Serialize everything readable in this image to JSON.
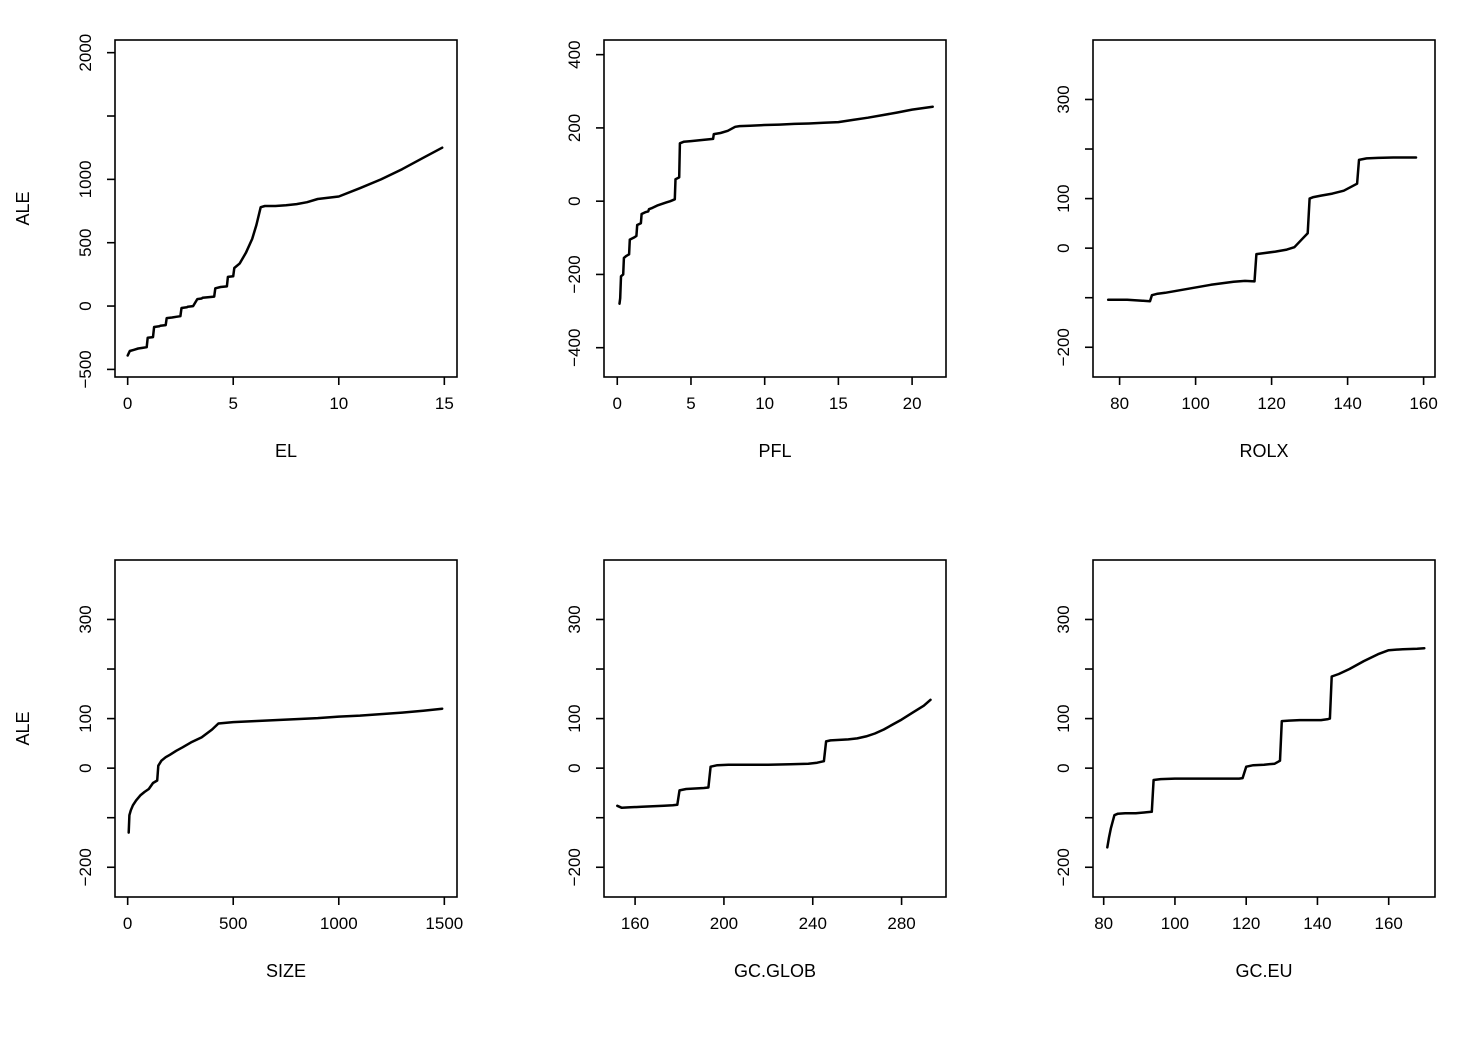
{
  "figure": {
    "background_color": "#ffffff",
    "line_color": "#000000",
    "text_color": "#000000",
    "axis_color": "#000000"
  },
  "chart_data": [
    {
      "type": "line",
      "title": "",
      "xlabel": "EL",
      "ylabel": "ALE",
      "xlim": [
        -0.6,
        15.6
      ],
      "ylim": [
        -560,
        2100
      ],
      "grid": false,
      "legend": "none",
      "xticks": [
        0,
        5,
        10,
        15
      ],
      "xtick_labels": [
        "0",
        "5",
        "10",
        "15"
      ],
      "yticks": [
        -500,
        0,
        500,
        1000,
        1500,
        2000
      ],
      "ytick_labels": [
        "−500",
        "0",
        "500",
        "1000",
        "",
        "2000"
      ],
      "x": [
        0,
        0.1,
        0.3,
        0.5,
        0.7,
        0.9,
        0.95,
        1.2,
        1.25,
        1.5,
        1.55,
        1.8,
        1.85,
        2.1,
        2.3,
        2.5,
        2.55,
        2.8,
        2.85,
        3.1,
        3.3,
        3.5,
        3.55,
        3.8,
        4.1,
        4.15,
        4.4,
        4.7,
        4.75,
        5.0,
        5.05,
        5.3,
        5.6,
        5.9,
        6.1,
        6.3,
        6.5,
        7.0,
        7.5,
        8.0,
        8.5,
        9.0,
        9.5,
        10.0,
        11.0,
        12.0,
        13.0,
        14.0,
        14.9
      ],
      "y": [
        -390,
        -355,
        -345,
        -335,
        -330,
        -325,
        -250,
        -245,
        -165,
        -160,
        -155,
        -150,
        -95,
        -90,
        -85,
        -80,
        -15,
        -10,
        -5,
        0,
        55,
        60,
        65,
        70,
        75,
        140,
        150,
        155,
        230,
        235,
        300,
        335,
        420,
        530,
        640,
        780,
        790,
        790,
        795,
        805,
        820,
        845,
        855,
        865,
        930,
        1000,
        1080,
        1170,
        1250
      ]
    },
    {
      "type": "line",
      "title": "",
      "xlabel": "PFL",
      "ylabel": "",
      "xlim": [
        -0.9,
        22.3
      ],
      "ylim": [
        -480,
        440
      ],
      "grid": false,
      "legend": "none",
      "xticks": [
        0,
        5,
        10,
        15,
        20
      ],
      "xtick_labels": [
        "0",
        "5",
        "10",
        "15",
        "20"
      ],
      "yticks": [
        -400,
        -200,
        0,
        200,
        400
      ],
      "ytick_labels": [
        "−400",
        "−200",
        "0",
        "200",
        "400"
      ],
      "x": [
        0.15,
        0.2,
        0.25,
        0.4,
        0.45,
        0.6,
        0.8,
        0.85,
        1.1,
        1.3,
        1.35,
        1.6,
        1.65,
        1.9,
        2.1,
        2.15,
        2.4,
        2.7,
        3.0,
        3.3,
        3.6,
        3.9,
        3.95,
        4.2,
        4.25,
        4.5,
        5.0,
        5.5,
        6.0,
        6.5,
        6.55,
        7.0,
        7.5,
        8.0,
        8.3,
        9.0,
        10.0,
        11.0,
        12.0,
        13.0,
        14.0,
        15.0,
        16.0,
        17.0,
        18.0,
        19.0,
        20.0,
        21.4
      ],
      "y": [
        -280,
        -265,
        -205,
        -200,
        -155,
        -150,
        -145,
        -105,
        -100,
        -95,
        -65,
        -60,
        -35,
        -30,
        -28,
        -22,
        -18,
        -12,
        -8,
        -4,
        0,
        5,
        60,
        65,
        158,
        162,
        164,
        166,
        168,
        170,
        183,
        186,
        192,
        203,
        205,
        206,
        208,
        209,
        211,
        212,
        214,
        216,
        222,
        228,
        235,
        242,
        250,
        258
      ]
    },
    {
      "type": "line",
      "title": "",
      "xlabel": "ROLX",
      "ylabel": "",
      "xlim": [
        73,
        163
      ],
      "ylim": [
        -260,
        420
      ],
      "grid": false,
      "legend": "none",
      "xticks": [
        80,
        100,
        120,
        140,
        160
      ],
      "xtick_labels": [
        "80",
        "100",
        "120",
        "140",
        "160"
      ],
      "yticks": [
        -200,
        -100,
        0,
        100,
        200,
        300
      ],
      "ytick_labels": [
        "−200",
        "",
        "0",
        "100",
        "",
        "300"
      ],
      "x": [
        77,
        82,
        86,
        88,
        88.5,
        90,
        92,
        95,
        98,
        101,
        104,
        107,
        110,
        113,
        115.5,
        116,
        118,
        121,
        124,
        126,
        128,
        129.5,
        130,
        131,
        133,
        136,
        139,
        141,
        142.5,
        143,
        145,
        148,
        152,
        158
      ],
      "y": [
        -104,
        -104,
        -106,
        -107,
        -95,
        -92,
        -90,
        -86,
        -82,
        -78,
        -74,
        -71,
        -68,
        -66,
        -67,
        -12,
        -10,
        -7,
        -3,
        2,
        18,
        30,
        100,
        103,
        106,
        110,
        116,
        124,
        130,
        178,
        181,
        182,
        183,
        183
      ]
    },
    {
      "type": "line",
      "title": "",
      "xlabel": "SIZE",
      "ylabel": "ALE",
      "xlim": [
        -60,
        1560
      ],
      "ylim": [
        -260,
        420
      ],
      "grid": false,
      "legend": "none",
      "xticks": [
        0,
        500,
        1000,
        1500
      ],
      "xtick_labels": [
        "0",
        "500",
        "1000",
        "1500"
      ],
      "yticks": [
        -200,
        -100,
        0,
        100,
        200,
        300
      ],
      "ytick_labels": [
        "−200",
        "",
        "0",
        "100",
        "",
        "300"
      ],
      "x": [
        5,
        8,
        15,
        25,
        40,
        60,
        80,
        100,
        120,
        140,
        145,
        160,
        180,
        200,
        230,
        260,
        300,
        350,
        400,
        430,
        500,
        600,
        700,
        800,
        900,
        1000,
        1100,
        1200,
        1300,
        1400,
        1490
      ],
      "y": [
        -130,
        -95,
        -85,
        -75,
        -65,
        -55,
        -48,
        -42,
        -30,
        -25,
        5,
        15,
        22,
        27,
        35,
        42,
        52,
        62,
        78,
        90,
        93,
        95,
        97,
        99,
        101,
        104,
        106,
        109,
        112,
        116,
        120
      ]
    },
    {
      "type": "line",
      "title": "",
      "xlabel": "GC.GLOB",
      "ylabel": "",
      "xlim": [
        146,
        300
      ],
      "ylim": [
        -260,
        420
      ],
      "grid": false,
      "legend": "none",
      "xticks": [
        160,
        200,
        240,
        280
      ],
      "xtick_labels": [
        "160",
        "200",
        "240",
        "280"
      ],
      "yticks": [
        -200,
        -100,
        0,
        100,
        200,
        300
      ],
      "ytick_labels": [
        "−200",
        "",
        "0",
        "100",
        "",
        "300"
      ],
      "x": [
        152,
        154,
        158,
        163,
        168,
        173,
        177,
        179,
        180,
        183,
        187,
        191,
        193,
        194,
        197,
        202,
        210,
        220,
        230,
        238,
        242,
        245,
        246,
        248,
        252,
        256,
        260,
        264,
        268,
        272,
        276,
        280,
        285,
        290,
        293
      ],
      "y": [
        -76,
        -80,
        -79,
        -78,
        -77,
        -76,
        -75,
        -74,
        -45,
        -42,
        -41,
        -40,
        -39,
        3,
        6,
        7,
        7,
        7,
        8,
        9,
        11,
        14,
        54,
        56,
        57,
        58,
        60,
        64,
        70,
        78,
        88,
        98,
        112,
        126,
        138
      ]
    },
    {
      "type": "line",
      "title": "",
      "xlabel": "GC.EU",
      "ylabel": "",
      "xlim": [
        77,
        173
      ],
      "ylim": [
        -260,
        420
      ],
      "grid": false,
      "legend": "none",
      "xticks": [
        80,
        100,
        120,
        140,
        160
      ],
      "xtick_labels": [
        "80",
        "100",
        "120",
        "140",
        "160"
      ],
      "yticks": [
        -200,
        -100,
        0,
        100,
        200,
        300
      ],
      "ytick_labels": [
        "−200",
        "",
        "0",
        "100",
        "",
        "300"
      ],
      "x": [
        81,
        81.5,
        82,
        83,
        84,
        86,
        89,
        92,
        93.5,
        94,
        96,
        100,
        105,
        110,
        115,
        118,
        119,
        120,
        122,
        125,
        128,
        129,
        129.5,
        130,
        132,
        135,
        138,
        141,
        143,
        143.5,
        144,
        146,
        149,
        153,
        157,
        160,
        164,
        168,
        170
      ],
      "y": [
        -160,
        -140,
        -122,
        -95,
        -92,
        -91,
        -91,
        -89,
        -88,
        -24,
        -22,
        -21,
        -21,
        -21,
        -21,
        -21,
        -20,
        3,
        6,
        7,
        9,
        13,
        15,
        95,
        96,
        97,
        97,
        97,
        99,
        100,
        185,
        190,
        200,
        216,
        230,
        238,
        240,
        241,
        242
      ]
    }
  ]
}
